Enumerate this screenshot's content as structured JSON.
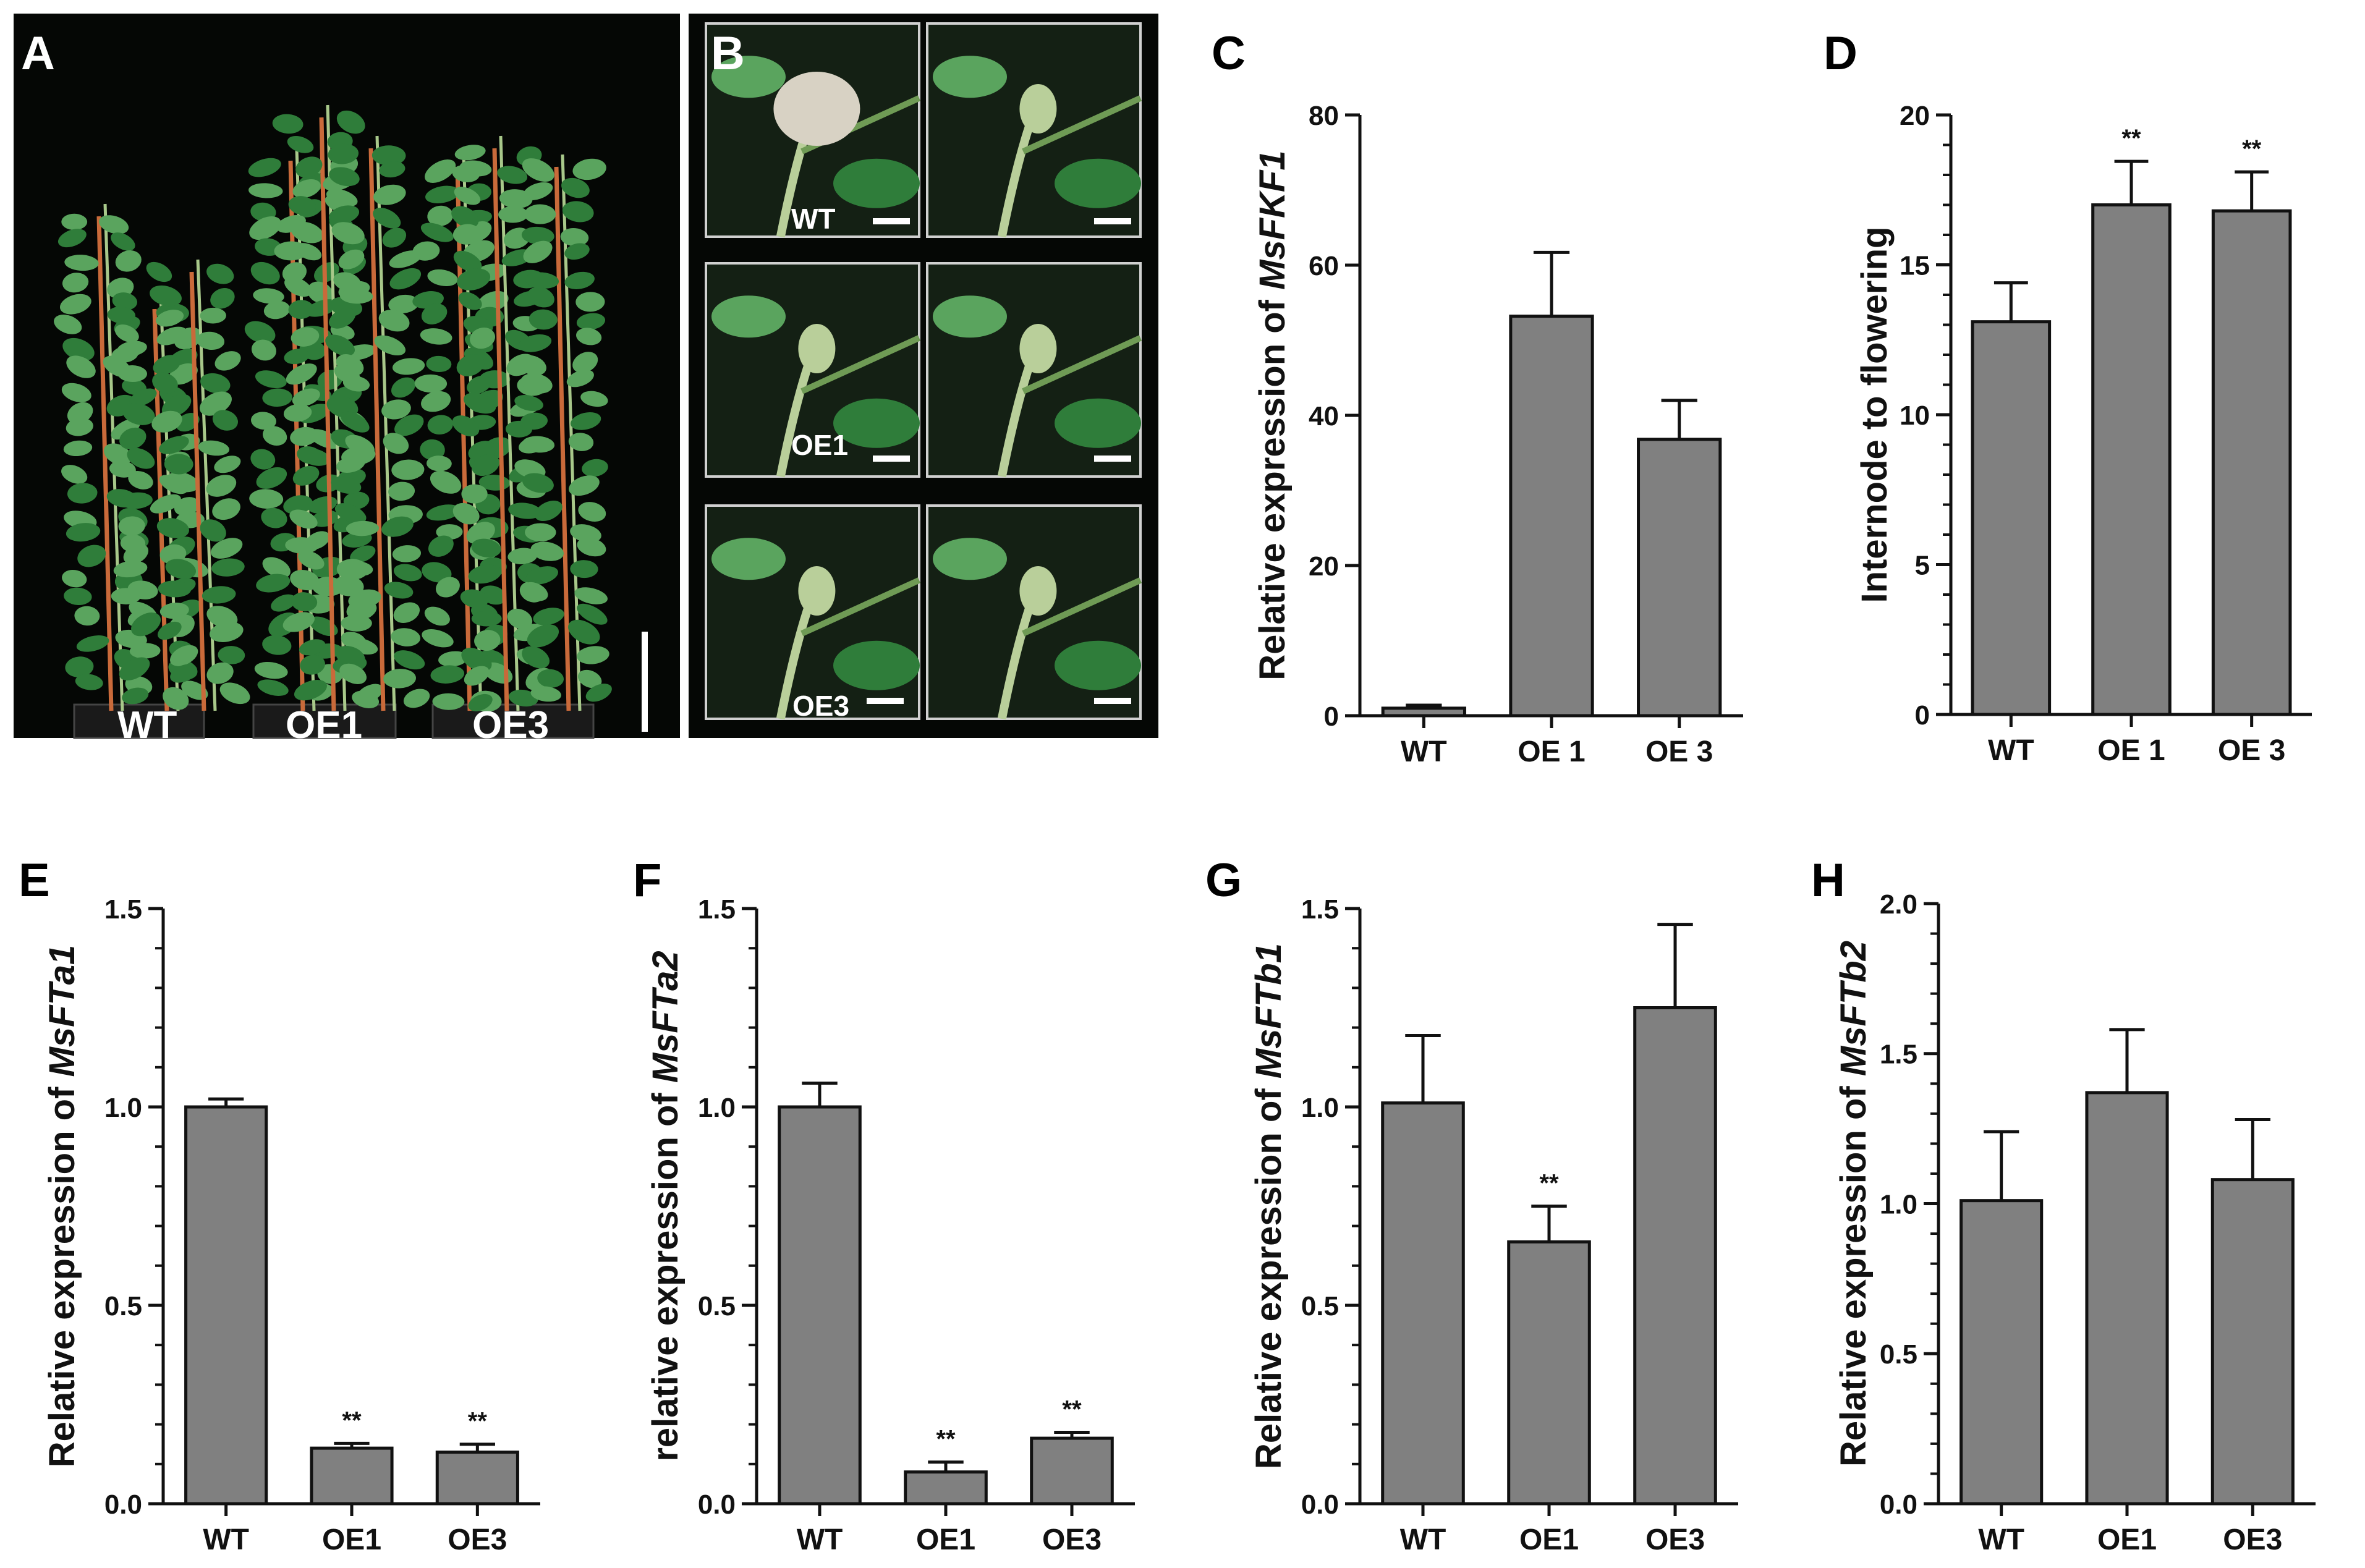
{
  "figure": {
    "colors": {
      "bar_fill": "#808080",
      "bar_stroke": "#111111",
      "axis": "#111111",
      "photo_bg": "#050705",
      "foliage": "#2f7d3a",
      "foliage_light": "#5aa45e",
      "stem": "#c96a3a",
      "bud": "#b9cf9a",
      "flower": "#d8d2c4"
    }
  },
  "photo_panels": {
    "A": {
      "letter": "A",
      "labels": [
        "WT",
        "OE1",
        "OE3"
      ]
    },
    "B": {
      "letter": "B",
      "labels": [
        "WT",
        "OE1",
        "OE3"
      ]
    }
  },
  "chart_data": [
    {
      "panel": "C",
      "type": "bar",
      "ylabel_prefix": "Relative expression of ",
      "ylabel_gene": "MsFKF1",
      "categories": [
        "WT",
        "OE 1",
        "OE 3"
      ],
      "values": [
        1.0,
        53.2,
        36.8
      ],
      "errors": [
        0.4,
        8.5,
        5.2
      ],
      "significance": [
        "",
        "",
        ""
      ],
      "ylim": [
        0,
        80
      ],
      "yticks": [
        0,
        20,
        40,
        60,
        80
      ],
      "ytick_labels": [
        "0",
        "20",
        "40",
        "60",
        "80"
      ],
      "minor_ticks": false
    },
    {
      "panel": "D",
      "type": "bar",
      "ylabel_prefix": "Internode to flowering",
      "ylabel_gene": "",
      "categories": [
        "WT",
        "OE 1",
        "OE 3"
      ],
      "values": [
        13.1,
        17.0,
        16.8
      ],
      "errors": [
        1.3,
        1.45,
        1.3
      ],
      "significance": [
        "",
        "**",
        "**"
      ],
      "ylim": [
        0,
        20
      ],
      "yticks": [
        0,
        5,
        10,
        15,
        20
      ],
      "ytick_labels": [
        "0",
        "5",
        "10",
        "15",
        "20"
      ],
      "minor_ticks": true
    },
    {
      "panel": "E",
      "type": "bar",
      "ylabel_prefix": "Relative expression of ",
      "ylabel_gene": "MsFTa1",
      "categories": [
        "WT",
        "OE1",
        "OE3"
      ],
      "values": [
        1.0,
        0.14,
        0.13
      ],
      "errors": [
        0.02,
        0.012,
        0.02
      ],
      "significance": [
        "",
        "**",
        "**"
      ],
      "ylim": [
        0,
        1.5
      ],
      "yticks": [
        0,
        0.5,
        1.0,
        1.5
      ],
      "ytick_labels": [
        "0.0",
        "0.5",
        "1.0",
        "1.5"
      ],
      "minor_ticks": true
    },
    {
      "panel": "F",
      "type": "bar",
      "ylabel_prefix": "relative expression of ",
      "ylabel_gene": "MsFTa2",
      "categories": [
        "WT",
        "OE1",
        "OE3"
      ],
      "values": [
        1.0,
        0.08,
        0.165
      ],
      "errors": [
        0.06,
        0.025,
        0.015
      ],
      "significance": [
        "",
        "**",
        "**"
      ],
      "ylim": [
        0,
        1.5
      ],
      "yticks": [
        0,
        0.5,
        1.0,
        1.5
      ],
      "ytick_labels": [
        "0.0",
        "0.5",
        "1.0",
        "1.5"
      ],
      "minor_ticks": true
    },
    {
      "panel": "G",
      "type": "bar",
      "ylabel_prefix": "Relative expression of ",
      "ylabel_gene": "MsFTb1",
      "categories": [
        "WT",
        "OE1",
        "OE3"
      ],
      "values": [
        1.01,
        0.66,
        1.25
      ],
      "errors": [
        0.17,
        0.09,
        0.21
      ],
      "significance": [
        "",
        "**",
        ""
      ],
      "ylim": [
        0,
        1.5
      ],
      "yticks": [
        0,
        0.5,
        1.0,
        1.5
      ],
      "ytick_labels": [
        "0.0",
        "0.5",
        "1.0",
        "1.5"
      ],
      "minor_ticks": true
    },
    {
      "panel": "H",
      "type": "bar",
      "ylabel_prefix": "Relative expression of ",
      "ylabel_gene": "MsFTb2",
      "categories": [
        "WT",
        "OE1",
        "OE3"
      ],
      "values": [
        1.01,
        1.37,
        1.08
      ],
      "errors": [
        0.23,
        0.21,
        0.2
      ],
      "significance": [
        "",
        "",
        ""
      ],
      "ylim": [
        0,
        2.0
      ],
      "yticks": [
        0,
        0.5,
        1.0,
        1.5,
        2.0
      ],
      "ytick_labels": [
        "0.0",
        "0.5",
        "1.0",
        "1.5",
        "2.0"
      ],
      "minor_ticks": true
    }
  ]
}
